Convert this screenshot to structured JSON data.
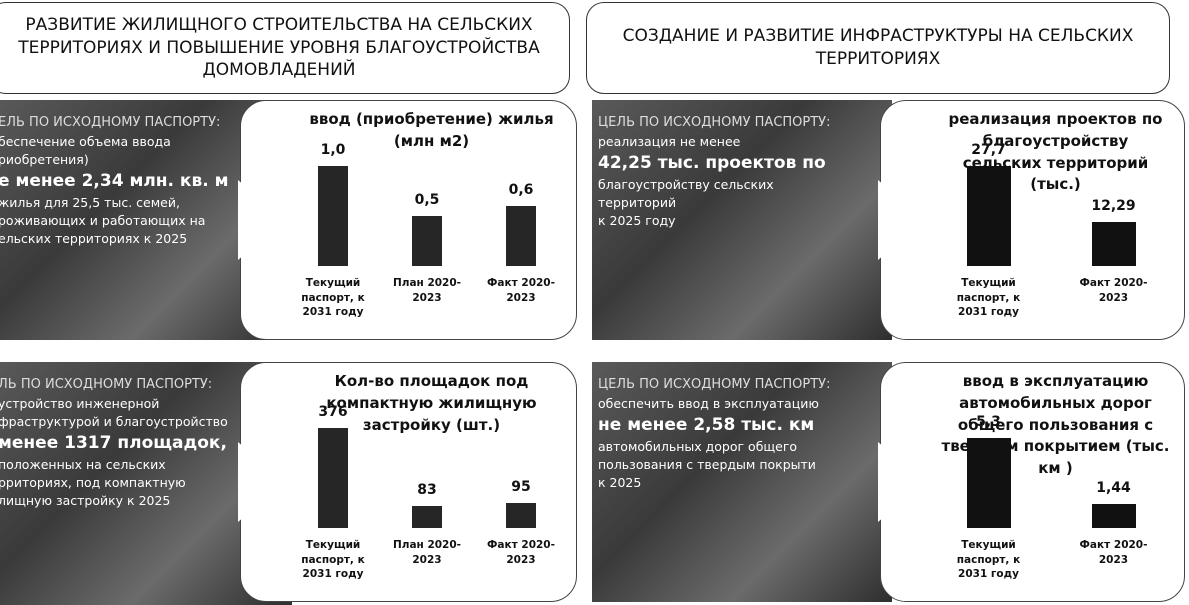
{
  "headers": [
    "РАЗВИТИЕ ЖИЛИЩНОГО СТРОИТЕЛЬСТВА НА СЕЛЬСКИХ ТЕРРИТОРИЯХ И ПОВЫШЕНИЕ УРОВНЯ БЛАГОУСТРОЙСТВА ДОМОВЛАДЕНИЙ",
    "СОЗДАНИЕ И РАЗВИТИЕ ИНФРАСТРУКТУРЫ НА СЕЛЬСКИХ ТЕРРИТОРИЯХ"
  ],
  "goals": [
    {
      "heading": "ЕЛЬ ПО ИСХОДНОМУ ПАСПОРТУ:",
      "lines_before": [
        "беспечение объема ввода",
        "риобретения)"
      ],
      "highlight": "е менее 2,34 млн. кв. м",
      "lines_after": [
        "жилья для 25,5 тыс. семей,",
        "роживающих и работающих на",
        "ельских территориях к 2025"
      ]
    },
    {
      "heading": "ЦЕЛЬ ПО ИСХОДНОМУ ПАСПОРТУ:",
      "lines_before": [
        "реализация не менее"
      ],
      "highlight": "42,25 тыс. проектов по",
      "lines_after": [
        "благоустройству сельских",
        "территорий",
        "к 2025 году"
      ]
    },
    {
      "heading": "ЛЬ ПО ИСХОДНОМУ ПАСПОРТУ:",
      "lines_before": [
        "устройство инженерной",
        "фраструктурой и благоустройство"
      ],
      "highlight": "менее 1317 площадок,",
      "lines_after": [
        "положенных на сельских",
        "рриториях, под компактную",
        "лищную застройку к 2025"
      ]
    },
    {
      "heading": "ЦЕЛЬ ПО ИСХОДНОМУ ПАСПОРТУ:",
      "lines_before": [
        "обеспечить ввод в эксплуатацию"
      ],
      "highlight": "не менее 2,58 тыс. км",
      "lines_after": [
        "автомобильных дорог общего",
        "пользования с твердым покрыти",
        "к 2025"
      ]
    }
  ],
  "chart_data": [
    {
      "type": "bar",
      "title": "ввод (приобретение) жилья (млн м2)",
      "categories": [
        "Текущий паспорт, к 2031 году",
        "План 2020-2023",
        "Факт 2020- 2023"
      ],
      "values": [
        1.0,
        0.5,
        0.6
      ],
      "value_labels": [
        "1,0",
        "0,5",
        "0,6"
      ],
      "color": "#262626"
    },
    {
      "type": "bar",
      "title": "реализация  проектов по благоустройству сельских территорий (тыс.)",
      "categories": [
        "Текущий паспорт, к 2031 году",
        "Факт 2020- 2023"
      ],
      "values": [
        27.7,
        12.29
      ],
      "value_labels": [
        "27,7",
        "12,29"
      ],
      "color": "#111111"
    },
    {
      "type": "bar",
      "title": "Кол-во площадок под компактную жилищную застройку (шт.)",
      "categories": [
        "Текущий паспорт, к 2031 году",
        "План 2020-2023",
        "Факт 2020-2023"
      ],
      "values": [
        376,
        83,
        95
      ],
      "color": "#262626"
    },
    {
      "type": "bar",
      "title": "ввод в эксплуатацию автомобильных дорог общего пользования с твердым покрытием (тыс. км )",
      "categories": [
        "Текущий паспорт, к 2031 году",
        "Факт 2020- 2023"
      ],
      "values": [
        5.3,
        1.44
      ],
      "value_labels": [
        "5,3",
        "1,44"
      ],
      "color": "#111111"
    }
  ]
}
